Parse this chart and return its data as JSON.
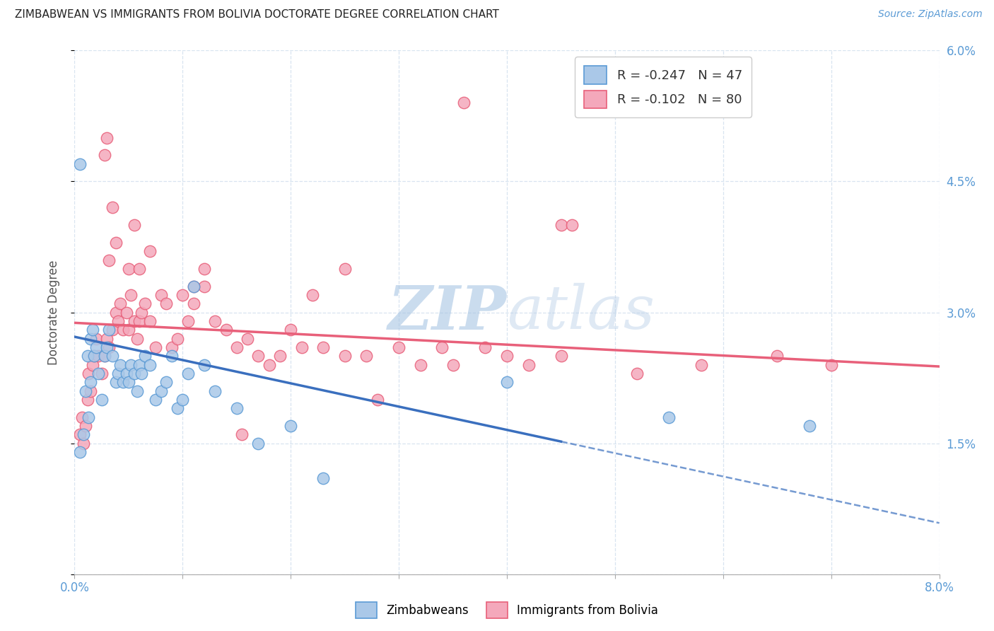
{
  "title": "ZIMBABWEAN VS IMMIGRANTS FROM BOLIVIA DOCTORATE DEGREE CORRELATION CHART",
  "source": "Source: ZipAtlas.com",
  "ylabel": "Doctorate Degree",
  "xmin": 0.0,
  "xmax": 8.0,
  "ymin": 0.0,
  "ymax": 6.0,
  "yticks": [
    0.0,
    1.5,
    3.0,
    4.5,
    6.0
  ],
  "ytick_labels": [
    "",
    "1.5%",
    "3.0%",
    "4.5%",
    "6.0%"
  ],
  "legend_r_blue": "-0.247",
  "legend_n_blue": "47",
  "legend_r_pink": "-0.102",
  "legend_n_pink": "80",
  "color_blue_fill": "#aac8e8",
  "color_pink_fill": "#f4a8bb",
  "color_blue_edge": "#5b9bd5",
  "color_pink_edge": "#e8607a",
  "color_blue_line": "#3a6fbe",
  "color_pink_line": "#e8607a",
  "watermark_color": "#c8dff5",
  "grid_color": "#d8e4f0",
  "blue_line_x0": 0.0,
  "blue_line_y0": 2.72,
  "blue_line_x1": 4.5,
  "blue_line_y1": 1.52,
  "pink_line_x0": 0.0,
  "pink_line_y0": 2.88,
  "pink_line_x1": 8.0,
  "pink_line_y1": 2.38,
  "blue_solid_end": 4.5,
  "blue_x": [
    0.05,
    0.08,
    0.1,
    0.12,
    0.13,
    0.15,
    0.15,
    0.17,
    0.18,
    0.2,
    0.22,
    0.25,
    0.28,
    0.3,
    0.32,
    0.35,
    0.38,
    0.4,
    0.42,
    0.45,
    0.48,
    0.5,
    0.52,
    0.55,
    0.58,
    0.6,
    0.62,
    0.65,
    0.7,
    0.75,
    0.8,
    0.85,
    0.9,
    0.95,
    1.0,
    1.05,
    1.1,
    1.2,
    1.3,
    1.5,
    1.7,
    2.0,
    2.3,
    4.0,
    5.5,
    6.8,
    0.05
  ],
  "blue_y": [
    1.4,
    1.6,
    2.1,
    2.5,
    1.8,
    2.2,
    2.7,
    2.8,
    2.5,
    2.6,
    2.3,
    2.0,
    2.5,
    2.6,
    2.8,
    2.5,
    2.2,
    2.3,
    2.4,
    2.2,
    2.3,
    2.2,
    2.4,
    2.3,
    2.1,
    2.4,
    2.3,
    2.5,
    2.4,
    2.0,
    2.1,
    2.2,
    2.5,
    1.9,
    2.0,
    2.3,
    3.3,
    2.4,
    2.1,
    1.9,
    1.5,
    1.7,
    1.1,
    2.2,
    1.8,
    1.7,
    4.7
  ],
  "pink_x": [
    0.05,
    0.07,
    0.08,
    0.1,
    0.12,
    0.13,
    0.15,
    0.17,
    0.18,
    0.2,
    0.22,
    0.25,
    0.28,
    0.3,
    0.32,
    0.35,
    0.38,
    0.4,
    0.42,
    0.45,
    0.48,
    0.5,
    0.52,
    0.55,
    0.58,
    0.6,
    0.62,
    0.65,
    0.7,
    0.75,
    0.8,
    0.85,
    0.9,
    0.95,
    1.0,
    1.05,
    1.1,
    1.2,
    1.3,
    1.4,
    1.5,
    1.6,
    1.7,
    1.8,
    1.9,
    2.0,
    2.1,
    2.2,
    2.3,
    2.5,
    2.7,
    2.8,
    3.0,
    3.2,
    3.4,
    3.5,
    3.8,
    4.0,
    4.2,
    4.5,
    5.2,
    5.8,
    6.5,
    7.0,
    1.55,
    0.28,
    0.3,
    0.32,
    0.35,
    0.38,
    0.5,
    0.55,
    2.5,
    1.1,
    1.2,
    0.6,
    0.7,
    4.5,
    4.6,
    3.6
  ],
  "pink_y": [
    1.6,
    1.8,
    1.5,
    1.7,
    2.0,
    2.3,
    2.1,
    2.4,
    2.5,
    2.7,
    2.5,
    2.3,
    2.5,
    2.7,
    2.6,
    2.8,
    3.0,
    2.9,
    3.1,
    2.8,
    3.0,
    2.8,
    3.2,
    2.9,
    2.7,
    2.9,
    3.0,
    3.1,
    2.9,
    2.6,
    3.2,
    3.1,
    2.6,
    2.7,
    3.2,
    2.9,
    3.1,
    3.3,
    2.9,
    2.8,
    2.6,
    2.7,
    2.5,
    2.4,
    2.5,
    2.8,
    2.6,
    3.2,
    2.6,
    2.5,
    2.5,
    2.0,
    2.6,
    2.4,
    2.6,
    2.4,
    2.6,
    2.5,
    2.4,
    2.5,
    2.3,
    2.4,
    2.5,
    2.4,
    1.6,
    4.8,
    5.0,
    3.6,
    4.2,
    3.8,
    3.5,
    4.0,
    3.5,
    3.3,
    3.5,
    3.5,
    3.7,
    4.0,
    4.0,
    5.4
  ]
}
